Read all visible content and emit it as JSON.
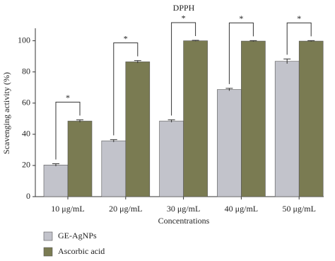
{
  "chart_data": {
    "type": "bar",
    "title": "DPPH",
    "x_label": "Concentrations",
    "y_label": "Scavenging activity (%)",
    "categories": [
      "10 μg/mL",
      "20 μg/mL",
      "30 μg/mL",
      "40 μg/mL",
      "50 μg/mL"
    ],
    "series": [
      {
        "name": "GE-AgNPs",
        "color": "#c2c3cb",
        "values": [
          20.3,
          35.8,
          48.5,
          68.7,
          86.8
        ],
        "errors": [
          0.8,
          0.8,
          0.8,
          0.8,
          1.5
        ]
      },
      {
        "name": "Ascorbic acid",
        "color": "#7a7b52",
        "values": [
          48.5,
          86.5,
          100,
          99.8,
          99.8
        ],
        "errors": [
          0.8,
          0.8,
          0.3,
          0.3,
          0.3
        ]
      }
    ],
    "significance": [
      "*",
      "*",
      "*",
      "*",
      "*"
    ],
    "ylim": [
      0,
      108
    ],
    "yticks": [
      0,
      20,
      40,
      60,
      80,
      100
    ],
    "legend": "bottom-left"
  }
}
